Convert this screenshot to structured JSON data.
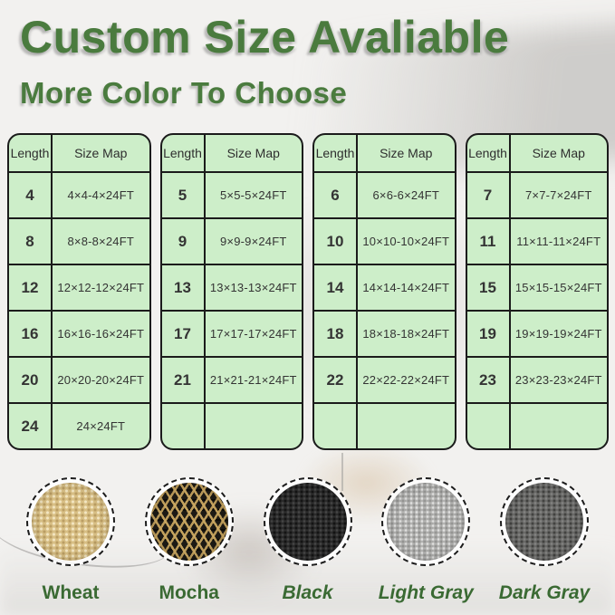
{
  "header": {
    "title": "Custom Size Avaliable",
    "subtitle": "More Color To Choose"
  },
  "tables": [
    {
      "columns": [
        "Length",
        "Size Map"
      ],
      "rows": [
        [
          "4",
          "4×4-4×24FT"
        ],
        [
          "8",
          "8×8-8×24FT"
        ],
        [
          "12",
          "12×12-12×24FT"
        ],
        [
          "16",
          "16×16-16×24FT"
        ],
        [
          "20",
          "20×20-20×24FT"
        ],
        [
          "24",
          "24×24FT"
        ]
      ]
    },
    {
      "columns": [
        "Length",
        "Size Map"
      ],
      "rows": [
        [
          "5",
          "5×5-5×24FT"
        ],
        [
          "9",
          "9×9-9×24FT"
        ],
        [
          "13",
          "13×13-13×24FT"
        ],
        [
          "17",
          "17×17-17×24FT"
        ],
        [
          "21",
          "21×21-21×24FT"
        ],
        [
          "",
          ""
        ]
      ]
    },
    {
      "columns": [
        "Length",
        "Size Map"
      ],
      "rows": [
        [
          "6",
          "6×6-6×24FT"
        ],
        [
          "10",
          "10×10-10×24FT"
        ],
        [
          "14",
          "14×14-14×24FT"
        ],
        [
          "18",
          "18×18-18×24FT"
        ],
        [
          "22",
          "22×22-22×24FT"
        ],
        [
          "",
          ""
        ]
      ]
    },
    {
      "columns": [
        "Length",
        "Size Map"
      ],
      "rows": [
        [
          "7",
          "7×7-7×24FT"
        ],
        [
          "11",
          "11×11-11×24FT"
        ],
        [
          "15",
          "15×15-15×24FT"
        ],
        [
          "19",
          "19×19-19×24FT"
        ],
        [
          "23",
          "23×23-23×24FT"
        ],
        [
          "",
          ""
        ]
      ]
    }
  ],
  "swatches": [
    {
      "label": "Wheat",
      "texture": "wheat",
      "italic": false,
      "base_color": "#d8bf85"
    },
    {
      "label": "Mocha",
      "texture": "mocha",
      "italic": false,
      "base_color": "#c9a55e"
    },
    {
      "label": "Black",
      "texture": "black",
      "italic": true,
      "base_color": "#2c2c2c"
    },
    {
      "label": "Light Gray",
      "texture": "lightgray",
      "italic": true,
      "base_color": "#b4b4b2"
    },
    {
      "label": "Dark Gray",
      "texture": "darkgray",
      "italic": true,
      "base_color": "#6a6a68"
    }
  ],
  "colors": {
    "accent_green": "#4a7b3e",
    "label_green": "#3a6a33",
    "table_bg": "#cdeec9",
    "table_border": "#1b1b1b",
    "cell_text": "#343434"
  }
}
